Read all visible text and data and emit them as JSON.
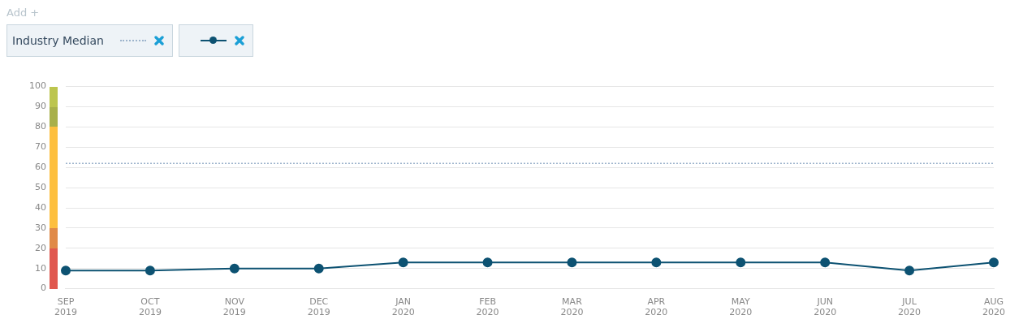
{
  "chart_data": {
    "type": "line",
    "annotations": [
      "Add +"
    ],
    "categories": [
      "SEP 2019",
      "OCT 2019",
      "NOV 2019",
      "DEC 2019",
      "JAN 2020",
      "FEB 2020",
      "MAR 2020",
      "APR 2020",
      "MAY 2020",
      "JUN 2020",
      "JUL 2020",
      "AUG 2020"
    ],
    "series": [
      {
        "name": "Industry Median",
        "color": "#9db4cc",
        "line_style": "dotted",
        "marker": "none",
        "values": [
          62,
          62,
          62,
          62,
          62,
          62,
          62,
          62,
          62,
          62,
          62,
          62
        ]
      },
      {
        "color": "#0d5272",
        "line_style": "solid",
        "marker": "circle",
        "values": [
          9,
          9,
          10,
          10,
          13,
          13,
          13,
          13,
          13,
          13,
          9,
          13
        ]
      }
    ],
    "ylim": [
      0,
      100
    ],
    "yticks": [
      0,
      10,
      20,
      30,
      40,
      50,
      60,
      70,
      80,
      90,
      100
    ],
    "grid": "y",
    "legend": "top left"
  }
}
